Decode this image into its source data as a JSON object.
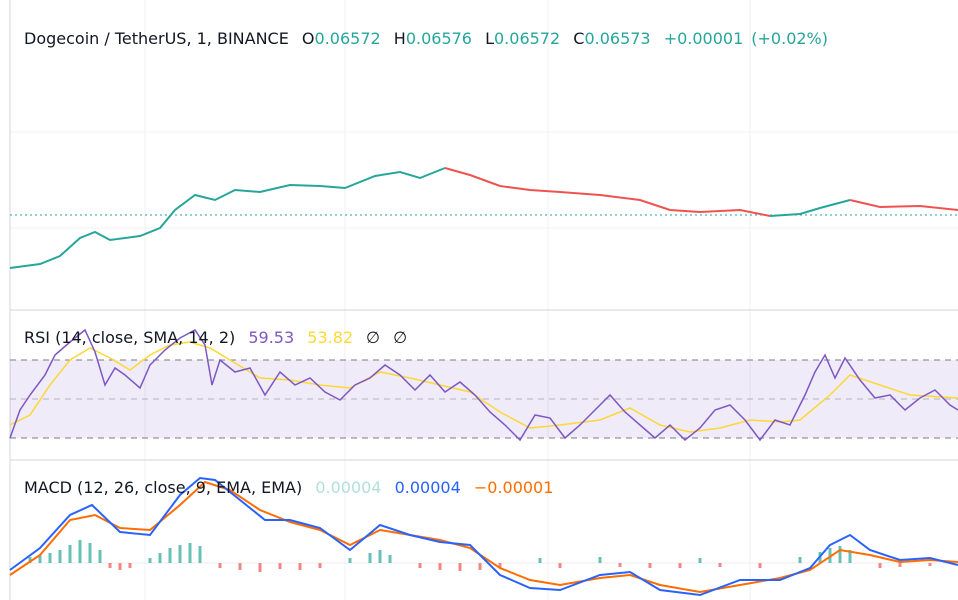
{
  "price_pane": {
    "title": "Dogecoin / TetherUS, 1, BINANCE",
    "open": {
      "label": "O",
      "value": "0.06572"
    },
    "high": {
      "label": "H",
      "value": "0.06576"
    },
    "low": {
      "label": "L",
      "value": "0.06572"
    },
    "close": {
      "label": "C",
      "value": "0.06573"
    },
    "change": "+0.00001",
    "change_percent": "(+0.02%)"
  },
  "rsi_pane": {
    "title": "RSI (14, close, SMA, 14, 2)",
    "rsi": "59.53",
    "rsi_ma": "53.82",
    "extras": [
      "∅",
      "∅"
    ]
  },
  "macd_pane": {
    "title": "MACD (12, 26, close, 9, EMA, EMA)",
    "histogram": "0.00004",
    "macd": "0.00004",
    "signal": "−0.00001"
  }
}
